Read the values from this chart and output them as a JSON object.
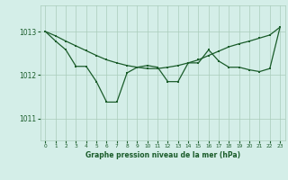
{
  "title": "Graphe pression niveau de la mer (hPa)",
  "background_color": "#d4eee8",
  "grid_color": "#aaccbb",
  "line_color": "#1a5c2a",
  "xlim": [
    -0.5,
    23.5
  ],
  "ylim": [
    1010.5,
    1013.6
  ],
  "yticks": [
    1011,
    1012,
    1013
  ],
  "xticks": [
    0,
    1,
    2,
    3,
    4,
    5,
    6,
    7,
    8,
    9,
    10,
    11,
    12,
    13,
    14,
    15,
    16,
    17,
    18,
    19,
    20,
    21,
    22,
    23
  ],
  "line1_x": [
    0,
    1,
    2,
    3,
    4,
    5,
    6,
    7,
    8,
    9,
    10,
    11,
    12,
    13,
    14,
    15,
    16,
    17,
    18,
    19,
    20,
    21,
    22,
    23
  ],
  "line1_y": [
    1013.0,
    1012.78,
    1012.58,
    1012.2,
    1012.2,
    1011.85,
    1011.38,
    1011.38,
    1012.05,
    1012.18,
    1012.22,
    1012.18,
    1011.85,
    1011.85,
    1012.28,
    1012.28,
    1012.58,
    1012.32,
    1012.18,
    1012.18,
    1012.12,
    1012.08,
    1012.15,
    1013.1
  ],
  "line2_x": [
    0,
    1,
    2,
    3,
    4,
    5,
    6,
    7,
    8,
    9,
    10,
    11,
    12,
    13,
    14,
    15,
    16,
    17,
    18,
    19,
    20,
    21,
    22,
    23
  ],
  "line2_y": [
    1013.0,
    1012.9,
    1012.78,
    1012.67,
    1012.56,
    1012.45,
    1012.35,
    1012.28,
    1012.22,
    1012.18,
    1012.15,
    1012.15,
    1012.18,
    1012.22,
    1012.28,
    1012.35,
    1012.45,
    1012.55,
    1012.65,
    1012.72,
    1012.78,
    1012.85,
    1012.92,
    1013.1
  ]
}
